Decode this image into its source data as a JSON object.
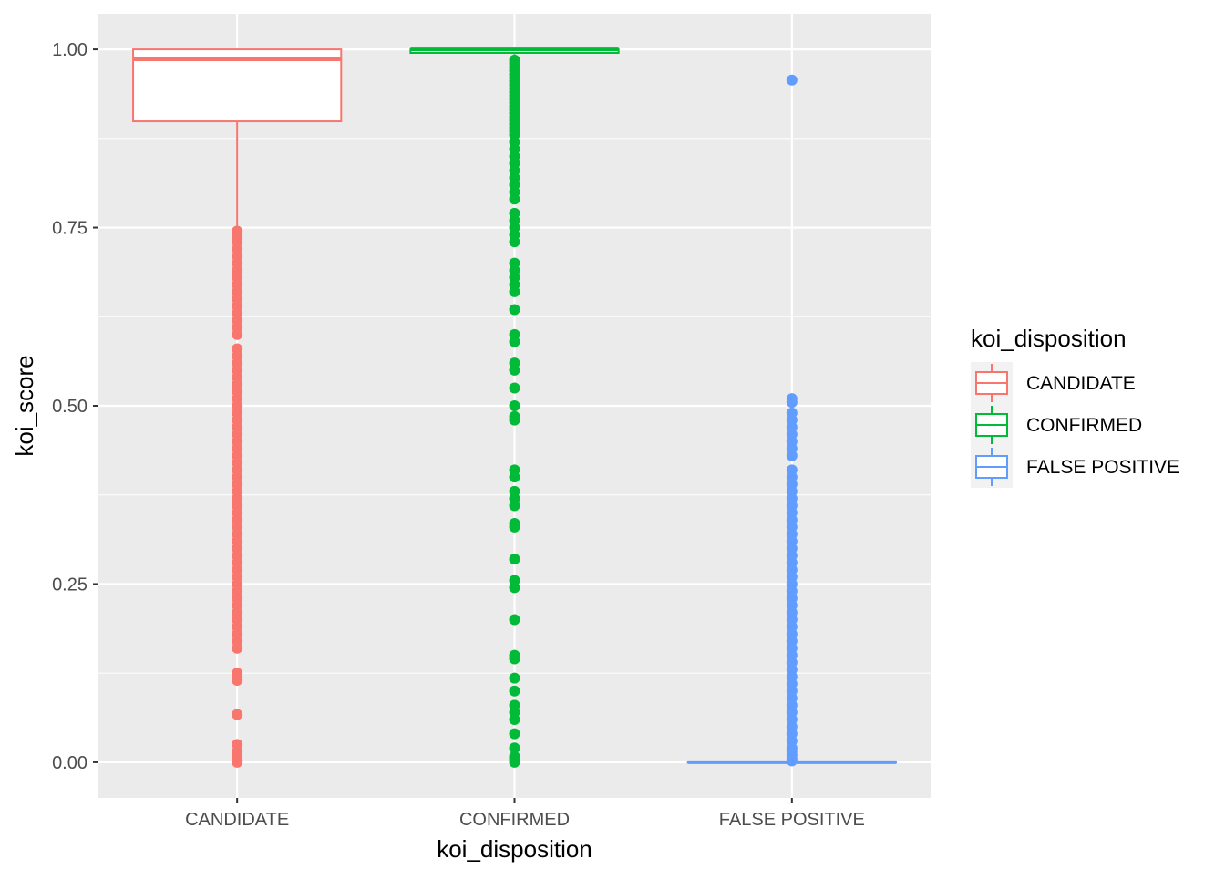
{
  "chart_data": {
    "type": "boxplot",
    "title": "",
    "xlabel": "koi_disposition",
    "ylabel": "koi_score",
    "categories": [
      "CANDIDATE",
      "CONFIRMED",
      "FALSE POSITIVE"
    ],
    "ylim": [
      -0.05,
      1.05
    ],
    "y_ticks": [
      0.0,
      0.25,
      0.5,
      0.75,
      1.0
    ],
    "y_tick_labels": [
      "0.00",
      "0.25",
      "0.50",
      "0.75",
      "1.00"
    ],
    "grid": true,
    "legend": {
      "title": "koi_disposition",
      "position": "right",
      "entries": [
        "CANDIDATE",
        "CONFIRMED",
        "FALSE POSITIVE"
      ]
    },
    "colors": {
      "CANDIDATE": "#F8766D",
      "CONFIRMED": "#00BA38",
      "FALSE POSITIVE": "#619CFF"
    },
    "series": [
      {
        "category": "CANDIDATE",
        "box": {
          "q1": 0.899,
          "median": 0.986,
          "q3": 1.0,
          "whisker_low": 0.746,
          "whisker_high": 1.0
        },
        "outliers": [
          0.745,
          0.74,
          0.735,
          0.73,
          0.72,
          0.71,
          0.7,
          0.69,
          0.68,
          0.67,
          0.66,
          0.65,
          0.64,
          0.63,
          0.62,
          0.61,
          0.6,
          0.58,
          0.57,
          0.56,
          0.55,
          0.54,
          0.53,
          0.52,
          0.51,
          0.5,
          0.49,
          0.48,
          0.47,
          0.46,
          0.45,
          0.44,
          0.43,
          0.42,
          0.41,
          0.4,
          0.39,
          0.38,
          0.37,
          0.36,
          0.35,
          0.34,
          0.33,
          0.32,
          0.31,
          0.3,
          0.29,
          0.28,
          0.27,
          0.26,
          0.25,
          0.24,
          0.23,
          0.22,
          0.21,
          0.2,
          0.19,
          0.18,
          0.17,
          0.16,
          0.125,
          0.12,
          0.115,
          0.067,
          0.025,
          0.015,
          0.008,
          0.003,
          0.0
        ]
      },
      {
        "category": "CONFIRMED",
        "box": {
          "q1": 0.995,
          "median": 1.0,
          "q3": 1.0,
          "whisker_low": 0.993,
          "whisker_high": 1.0
        },
        "outliers": [
          0.985,
          0.98,
          0.975,
          0.97,
          0.965,
          0.96,
          0.955,
          0.95,
          0.945,
          0.94,
          0.935,
          0.93,
          0.925,
          0.92,
          0.915,
          0.91,
          0.905,
          0.9,
          0.895,
          0.89,
          0.885,
          0.88,
          0.87,
          0.86,
          0.85,
          0.84,
          0.83,
          0.82,
          0.81,
          0.8,
          0.79,
          0.77,
          0.76,
          0.75,
          0.74,
          0.73,
          0.7,
          0.69,
          0.68,
          0.67,
          0.66,
          0.635,
          0.6,
          0.59,
          0.56,
          0.55,
          0.525,
          0.5,
          0.485,
          0.48,
          0.41,
          0.4,
          0.38,
          0.37,
          0.36,
          0.335,
          0.33,
          0.285,
          0.255,
          0.245,
          0.2,
          0.15,
          0.145,
          0.118,
          0.1,
          0.08,
          0.07,
          0.06,
          0.04,
          0.02,
          0.008,
          0.005,
          0.002,
          0.0
        ]
      },
      {
        "category": "FALSE POSITIVE",
        "box": {
          "q1": 0.0,
          "median": 0.0,
          "q3": 0.0,
          "whisker_low": 0.0,
          "whisker_high": 0.0
        },
        "outliers": [
          0.957,
          0.51,
          0.505,
          0.49,
          0.48,
          0.47,
          0.46,
          0.45,
          0.44,
          0.43,
          0.41,
          0.4,
          0.39,
          0.38,
          0.37,
          0.36,
          0.35,
          0.34,
          0.33,
          0.32,
          0.31,
          0.3,
          0.29,
          0.28,
          0.27,
          0.26,
          0.25,
          0.24,
          0.23,
          0.22,
          0.21,
          0.2,
          0.19,
          0.18,
          0.17,
          0.16,
          0.15,
          0.14,
          0.13,
          0.12,
          0.11,
          0.1,
          0.09,
          0.08,
          0.07,
          0.06,
          0.05,
          0.04,
          0.03,
          0.02,
          0.015,
          0.01,
          0.005,
          0.002
        ]
      }
    ]
  }
}
